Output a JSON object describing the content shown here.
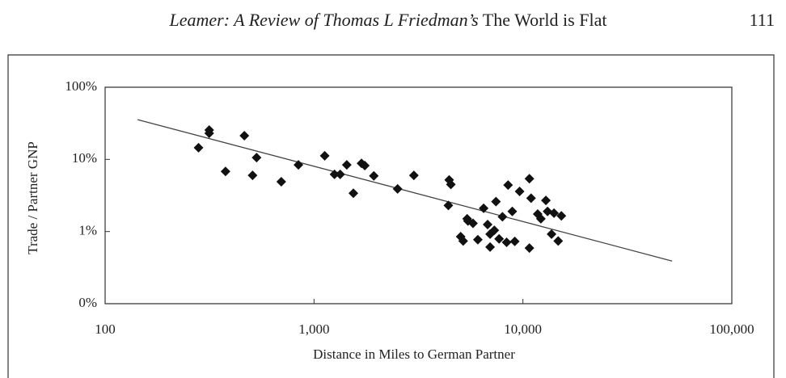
{
  "header": {
    "title_italic": "Leamer: A Review of Thomas L Friedman’s",
    "title_roman": "The World is Flat",
    "page_number": "111"
  },
  "chart_data": {
    "type": "scatter",
    "x_label": "Distance in Miles to German Partner",
    "y_label": "Trade / Partner GNP",
    "xscale": "log",
    "yscale": "log",
    "color": "#111111",
    "xlim": [
      100,
      100000
    ],
    "xticks": [
      100,
      {
        "value": 1000,
        "label": "1,000"
      },
      {
        "value": 10000,
        "label": "10,000"
      },
      {
        "value": 100000,
        "label": "100,000"
      }
    ],
    "ylim": [
      0.1,
      100
    ],
    "yticks": [
      {
        "value": 0.1,
        "label": "0%"
      },
      {
        "value": 1,
        "label": "1%"
      },
      {
        "value": 10,
        "label": "10%"
      },
      {
        "value": 100,
        "label": "100%"
      }
    ],
    "x": [
      280,
      315,
      315,
      377,
      464,
      508,
      531,
      697,
      842,
      1125,
      1253,
      1334,
      1435,
      1543,
      1688,
      1750,
      1933,
      2512,
      3006,
      4436,
      4519,
      4396,
      5035,
      5176,
      5408,
      5458,
      5768,
      6084,
      6486,
      6776,
      6966,
      6966,
      7295,
      7430,
      7691,
      7980,
      8356,
      8492,
      8892,
      9140,
      9640,
      10740,
      10940,
      11770,
      12190,
      12880,
      13120,
      13710,
      14090,
      15280,
      14750,
      10740
    ],
    "values": [
      14.5,
      25.5,
      23,
      6.8,
      21.3,
      6.0,
      10.6,
      4.9,
      8.4,
      11.2,
      6.2,
      6.2,
      8.4,
      3.4,
      8.8,
      8.2,
      5.9,
      3.9,
      6.0,
      5.2,
      4.5,
      2.3,
      0.85,
      0.74,
      1.5,
      1.4,
      1.3,
      0.77,
      2.1,
      1.25,
      0.92,
      0.61,
      1.04,
      2.6,
      0.79,
      1.6,
      0.71,
      4.4,
      1.9,
      0.73,
      3.6,
      5.4,
      2.9,
      1.75,
      1.5,
      2.7,
      1.9,
      0.92,
      1.8,
      1.65,
      0.74,
      0.59
    ],
    "trendline": {
      "x": [
        143,
        51800
      ],
      "y": [
        35.6,
        0.39
      ]
    }
  }
}
